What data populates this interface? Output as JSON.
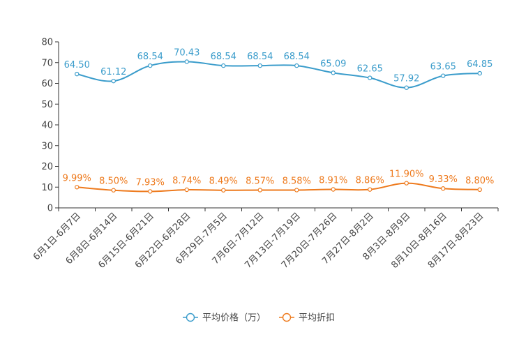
{
  "chart_data": {
    "type": "line",
    "title": "",
    "xlabel": "",
    "ylabel": "",
    "ylim": [
      0,
      80
    ],
    "yticks": [
      0,
      10,
      20,
      30,
      40,
      50,
      60,
      70,
      80
    ],
    "categories": [
      "6月1日-6月7日",
      "6月8日-6月14日",
      "6月15日-6月21日",
      "6月22日-6月28日",
      "6月29日-7月5日",
      "7月6日-7月12日",
      "7月13日-7月19日",
      "7月20日-7月26日",
      "7月27日-8月2日",
      "8月3日-8月9日",
      "8月10日-8月16日",
      "8月17日-8月23日"
    ],
    "series": [
      {
        "name": "平均价格（万）",
        "color": "#3a9ccb",
        "values": [
          64.5,
          61.12,
          68.54,
          70.43,
          68.54,
          68.54,
          68.54,
          65.09,
          62.65,
          57.92,
          63.65,
          64.85
        ],
        "labels": [
          "64.50",
          "61.12",
          "68.54",
          "70.43",
          "68.54",
          "68.54",
          "68.54",
          "65.09",
          "62.65",
          "57.92",
          "63.65",
          "64.85"
        ]
      },
      {
        "name": "平均折扣",
        "color": "#ee7a1d",
        "values": [
          9.99,
          8.5,
          7.93,
          8.74,
          8.49,
          8.57,
          8.58,
          8.91,
          8.86,
          11.9,
          9.33,
          8.8
        ],
        "labels": [
          "9.99%",
          "8.50%",
          "7.93%",
          "8.74%",
          "8.49%",
          "8.57%",
          "8.58%",
          "8.91%",
          "8.86%",
          "11.90%",
          "9.33%",
          "8.80%"
        ]
      }
    ],
    "legend_position": "bottom-center",
    "grid": false
  }
}
